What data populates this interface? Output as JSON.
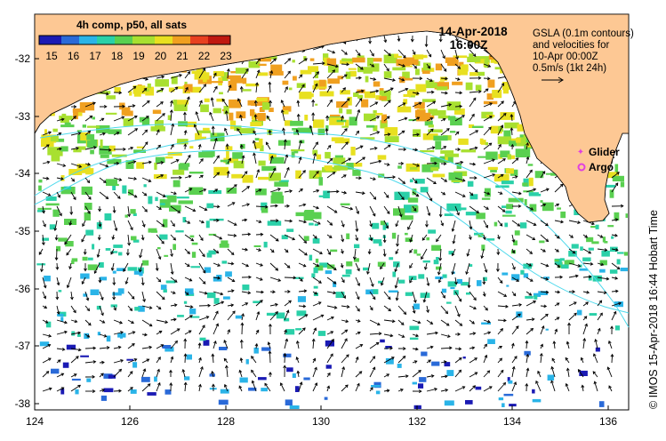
{
  "map": {
    "colorbar_title": "4h comp, p50, all sats",
    "colorbar_ticks": [
      "15",
      "16",
      "17",
      "18",
      "19",
      "20",
      "21",
      "22",
      "23"
    ],
    "date": "14-Apr-2018",
    "time": "16:00Z",
    "gsla_legend": [
      "GSLA (0.1m contours)",
      "and velocities for",
      "10-Apr 00:00Z",
      "0.5m/s (1kt 24h)"
    ],
    "glider_label": "Glider",
    "argo_label": "Argo",
    "credit": "© IMOS 15-Apr-2018 16:44 Hobart Time",
    "x_ticks": [
      "124",
      "126",
      "128",
      "130",
      "132",
      "134",
      "136"
    ],
    "y_ticks": [
      "-32",
      "-33",
      "-34",
      "-35",
      "-36",
      "-37",
      "-38"
    ],
    "colors": {
      "land": "#fdc894",
      "contour": "#4dd9ec",
      "glider": "#e040e0",
      "argo": "#e040e0",
      "frame": "#000000"
    },
    "colormap": [
      "#1a1ab4",
      "#2a6ad8",
      "#2ab4e8",
      "#2ad0a8",
      "#5ad050",
      "#a8e030",
      "#e8e020",
      "#f0a020",
      "#e84020",
      "#c01810"
    ]
  }
}
